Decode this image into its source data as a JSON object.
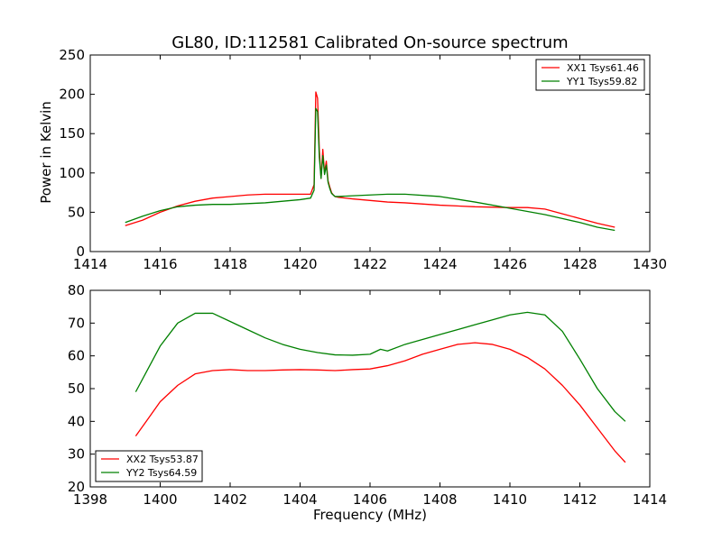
{
  "chart_data": [
    {
      "type": "line",
      "title": "GL80, ID:112581 Calibrated On-source spectrum",
      "xlabel": "",
      "ylabel": "Power in Kelvin",
      "xlim": [
        1414,
        1430
      ],
      "ylim": [
        0,
        250
      ],
      "xticks": [
        1414,
        1416,
        1418,
        1420,
        1422,
        1424,
        1426,
        1428,
        1430
      ],
      "yticks": [
        0,
        50,
        100,
        150,
        200,
        250
      ],
      "legend_position": "top-right",
      "series": [
        {
          "name": "XX1 Tsys61.46",
          "color": "#ff0000",
          "x": [
            1415.0,
            1415.5,
            1416.0,
            1416.5,
            1417.0,
            1417.5,
            1418.0,
            1418.5,
            1419.0,
            1419.5,
            1420.0,
            1420.3,
            1420.4,
            1420.45,
            1420.5,
            1420.55,
            1420.6,
            1420.65,
            1420.7,
            1420.75,
            1420.8,
            1420.85,
            1420.9,
            1420.95,
            1421.0,
            1421.1,
            1421.5,
            1422.0,
            1422.5,
            1423.0,
            1424.0,
            1425.0,
            1426.0,
            1426.5,
            1427.0,
            1427.5,
            1428.0,
            1428.5,
            1429.0
          ],
          "y": [
            33,
            40,
            50,
            58,
            64,
            68,
            70,
            72,
            73,
            73,
            73,
            73,
            85,
            203,
            195,
            130,
            93,
            130,
            100,
            115,
            90,
            82,
            75,
            72,
            70,
            69,
            67,
            65,
            63,
            62,
            59,
            57,
            56,
            56,
            54,
            48,
            42,
            36,
            31
          ]
        },
        {
          "name": "YY1 Tsys59.82",
          "color": "#008000",
          "x": [
            1415.0,
            1415.5,
            1416.0,
            1416.5,
            1417.0,
            1417.5,
            1418.0,
            1418.5,
            1419.0,
            1419.5,
            1420.0,
            1420.3,
            1420.4,
            1420.45,
            1420.5,
            1420.55,
            1420.6,
            1420.65,
            1420.7,
            1420.75,
            1420.8,
            1420.85,
            1420.9,
            1420.95,
            1421.0,
            1421.1,
            1421.5,
            1422.0,
            1422.5,
            1423.0,
            1424.0,
            1425.0,
            1426.0,
            1426.5,
            1427.0,
            1427.5,
            1428.0,
            1428.5,
            1429.0
          ],
          "y": [
            37,
            45,
            52,
            57,
            59,
            60,
            60,
            61,
            62,
            64,
            66,
            68,
            78,
            182,
            178,
            120,
            93,
            122,
            98,
            110,
            88,
            80,
            74,
            72,
            70,
            70,
            71,
            72,
            73,
            73,
            70,
            63,
            55,
            51,
            47,
            42,
            37,
            31,
            27
          ]
        }
      ]
    },
    {
      "type": "line",
      "title": "",
      "xlabel": "Frequency (MHz)",
      "ylabel": "",
      "xlim": [
        1398,
        1414
      ],
      "ylim": [
        20,
        80
      ],
      "xticks": [
        1398,
        1400,
        1402,
        1404,
        1406,
        1408,
        1410,
        1412,
        1414
      ],
      "yticks": [
        20,
        30,
        40,
        50,
        60,
        70,
        80
      ],
      "legend_position": "bottom-left",
      "series": [
        {
          "name": "XX2 Tsys53.87",
          "color": "#ff0000",
          "x": [
            1399.3,
            1399.6,
            1400.0,
            1400.5,
            1401.0,
            1401.5,
            1402.0,
            1402.5,
            1403.0,
            1403.5,
            1404.0,
            1404.5,
            1405.0,
            1405.5,
            1406.0,
            1406.5,
            1407.0,
            1407.5,
            1408.0,
            1408.5,
            1409.0,
            1409.5,
            1410.0,
            1410.5,
            1411.0,
            1411.5,
            1412.0,
            1412.5,
            1413.0,
            1413.3
          ],
          "y": [
            35.5,
            40,
            46,
            51,
            54.5,
            55.5,
            55.8,
            55.5,
            55.5,
            55.7,
            55.8,
            55.7,
            55.5,
            55.8,
            56,
            57,
            58.5,
            60.5,
            62,
            63.5,
            64,
            63.5,
            62,
            59.5,
            56,
            51,
            45,
            38,
            31,
            27.5
          ]
        },
        {
          "name": "YY2 Tsys64.59",
          "color": "#008000",
          "x": [
            1399.3,
            1399.6,
            1400.0,
            1400.5,
            1401.0,
            1401.5,
            1402.0,
            1402.5,
            1403.0,
            1403.5,
            1404.0,
            1404.5,
            1405.0,
            1405.5,
            1406.0,
            1406.3,
            1406.5,
            1407.0,
            1407.5,
            1408.0,
            1408.5,
            1409.0,
            1409.5,
            1410.0,
            1410.5,
            1411.0,
            1411.5,
            1412.0,
            1412.5,
            1413.0,
            1413.3
          ],
          "y": [
            49,
            55,
            63,
            70,
            73,
            73,
            70.5,
            68,
            65.5,
            63.5,
            62,
            61,
            60.3,
            60.2,
            60.5,
            62,
            61.5,
            63.5,
            65,
            66.5,
            68,
            69.5,
            71,
            72.5,
            73.3,
            72.5,
            67.5,
            59,
            50,
            43,
            40
          ]
        }
      ]
    }
  ]
}
